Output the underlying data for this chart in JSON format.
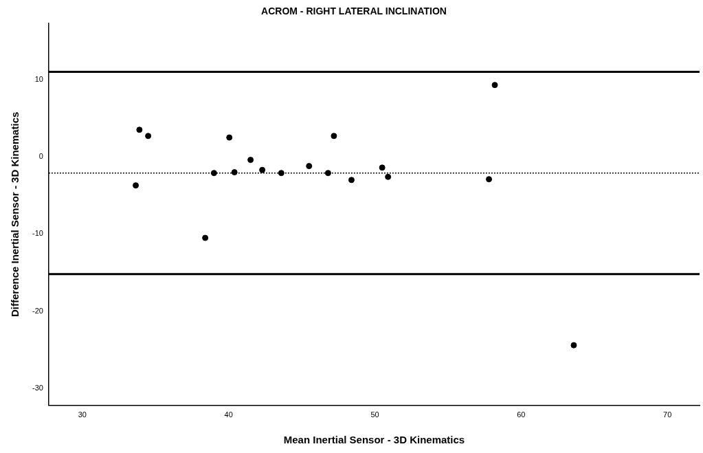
{
  "chart_data": {
    "type": "scatter",
    "title": "ACROM - RIGHT LATERAL INCLINATION",
    "xlabel": "Mean Inertial Sensor - 3D Kinematics",
    "ylabel": "Difference Inertial Sensor - 3D Kinematics",
    "x": [
      33.65,
      33.9,
      34.5,
      38.4,
      39.0,
      40.05,
      40.4,
      41.5,
      42.3,
      43.6,
      45.5,
      46.8,
      47.2,
      48.4,
      50.5,
      50.9,
      57.8,
      58.2,
      63.6
    ],
    "series": [
      {
        "color": "#000000",
        "values": [
          -3.7,
          3.5,
          2.7,
          -10.5,
          -2.1,
          2.5,
          -2.0,
          -0.4,
          -1.7,
          -2.1,
          -1.2,
          -2.1,
          2.7,
          -3.0,
          -1.4,
          -2.6,
          -2.9,
          9.3,
          -24.4
        ]
      }
    ],
    "xlim": [
      27.7,
      72.2
    ],
    "xticks": [
      30,
      40,
      50,
      60,
      70
    ],
    "ylim": [
      -32.2,
      17.3
    ],
    "yticks": [
      -30,
      -20,
      -10,
      0,
      10
    ],
    "ref_lines": [
      {
        "axis": "y",
        "value": 11.0,
        "color": "#000000",
        "line_style": "solid"
      },
      {
        "axis": "y",
        "value": -2.1,
        "color": "#000000",
        "line_style": "dotted"
      },
      {
        "axis": "y",
        "value": -15.2,
        "color": "#000000",
        "line_style": "solid"
      }
    ],
    "grid": false,
    "legend": false,
    "marker": "circle"
  }
}
